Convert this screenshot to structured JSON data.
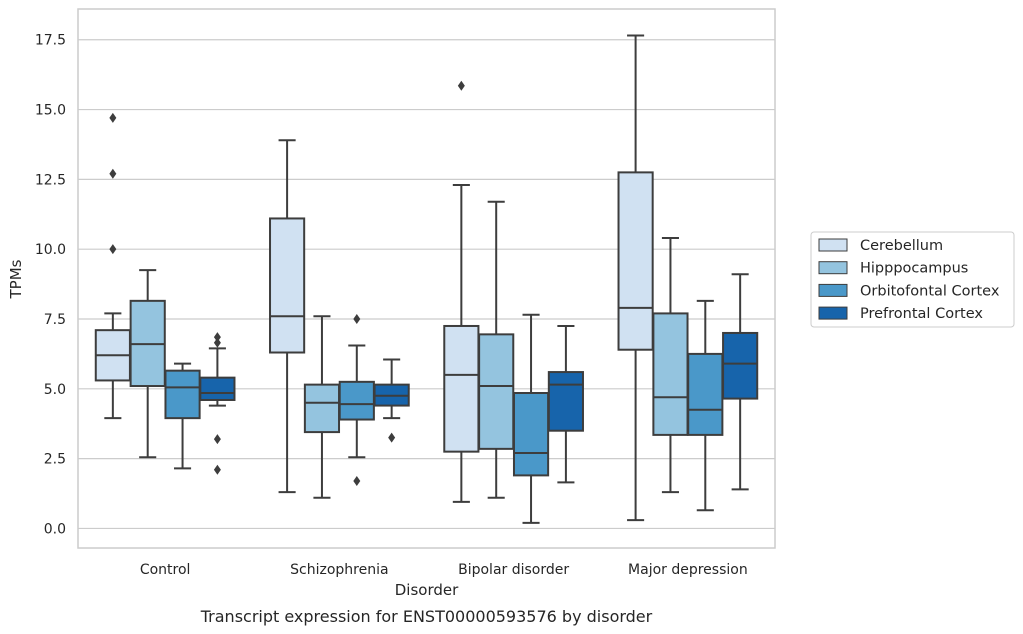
{
  "chart_data": {
    "type": "boxplot",
    "caption": "Transcript expression for ENST00000593576 by disorder",
    "xlabel": "Disorder",
    "ylabel": "TPMs",
    "ylim": [
      -0.7,
      18.6
    ],
    "yticks": [
      0.0,
      2.5,
      5.0,
      7.5,
      10.0,
      12.5,
      15.0,
      17.5
    ],
    "ytick_labels": [
      "0.0",
      "2.5",
      "5.0",
      "7.5",
      "10.0",
      "12.5",
      "15.0",
      "17.5"
    ],
    "grid": "horizontal",
    "legend_position": "right",
    "categories": [
      "Control",
      "Schizophrenia",
      "Bipolar disorder",
      "Major depression"
    ],
    "series": [
      {
        "name": "Cerebellum",
        "color": "#d0e1f2",
        "boxes": [
          {
            "q1": 5.3,
            "median": 6.2,
            "q3": 7.1,
            "whisker_low": 3.95,
            "whisker_high": 7.7,
            "outliers": [
              10.0,
              12.7,
              14.7
            ]
          },
          {
            "q1": 6.3,
            "median": 7.6,
            "q3": 11.1,
            "whisker_low": 1.3,
            "whisker_high": 13.9,
            "outliers": []
          },
          {
            "q1": 2.75,
            "median": 5.5,
            "q3": 7.25,
            "whisker_low": 0.95,
            "whisker_high": 12.3,
            "outliers": [
              15.85
            ]
          },
          {
            "q1": 6.4,
            "median": 7.9,
            "q3": 12.75,
            "whisker_low": 0.3,
            "whisker_high": 17.65,
            "outliers": []
          }
        ]
      },
      {
        "name": "Hipppocampus",
        "color": "#94c4df",
        "boxes": [
          {
            "q1": 5.1,
            "median": 6.6,
            "q3": 8.15,
            "whisker_low": 2.55,
            "whisker_high": 9.25,
            "outliers": []
          },
          {
            "q1": 3.45,
            "median": 4.5,
            "q3": 5.15,
            "whisker_low": 1.1,
            "whisker_high": 7.6,
            "outliers": []
          },
          {
            "q1": 2.85,
            "median": 5.1,
            "q3": 6.95,
            "whisker_low": 1.1,
            "whisker_high": 11.7,
            "outliers": []
          },
          {
            "q1": 3.35,
            "median": 4.7,
            "q3": 7.7,
            "whisker_low": 1.3,
            "whisker_high": 10.4,
            "outliers": []
          }
        ]
      },
      {
        "name": "Orbitofontal Cortex",
        "color": "#4a98c9",
        "boxes": [
          {
            "q1": 3.95,
            "median": 5.05,
            "q3": 5.65,
            "whisker_low": 2.15,
            "whisker_high": 5.9,
            "outliers": []
          },
          {
            "q1": 3.9,
            "median": 4.45,
            "q3": 5.25,
            "whisker_low": 2.55,
            "whisker_high": 6.55,
            "outliers": [
              1.7,
              7.5
            ]
          },
          {
            "q1": 1.9,
            "median": 2.7,
            "q3": 4.85,
            "whisker_low": 0.2,
            "whisker_high": 7.65,
            "outliers": []
          },
          {
            "q1": 3.35,
            "median": 4.25,
            "q3": 6.25,
            "whisker_low": 0.65,
            "whisker_high": 8.15,
            "outliers": []
          }
        ]
      },
      {
        "name": "Prefrontal Cortex",
        "color": "#1764ab",
        "boxes": [
          {
            "q1": 4.6,
            "median": 4.85,
            "q3": 5.4,
            "whisker_low": 4.4,
            "whisker_high": 6.45,
            "outliers": [
              2.1,
              3.2,
              6.65,
              6.85
            ]
          },
          {
            "q1": 4.4,
            "median": 4.75,
            "q3": 5.15,
            "whisker_low": 3.95,
            "whisker_high": 6.05,
            "outliers": [
              3.25
            ]
          },
          {
            "q1": 3.5,
            "median": 5.15,
            "q3": 5.6,
            "whisker_low": 1.65,
            "whisker_high": 7.25,
            "outliers": []
          },
          {
            "q1": 4.65,
            "median": 5.9,
            "q3": 7.0,
            "whisker_low": 1.4,
            "whisker_high": 9.1,
            "outliers": []
          }
        ]
      }
    ]
  }
}
